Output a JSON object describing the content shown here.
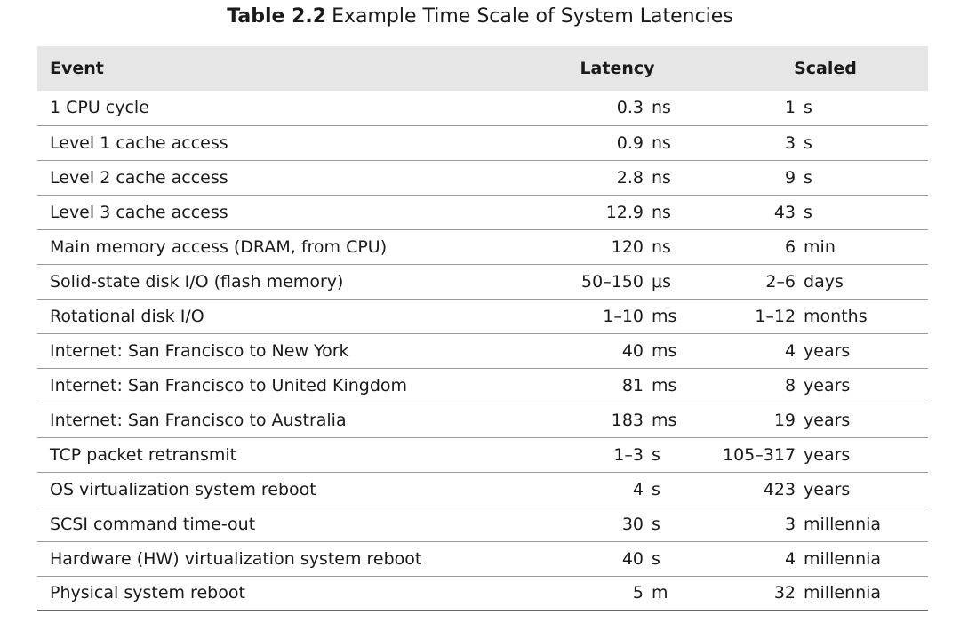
{
  "title": {
    "label": "Table 2.2",
    "text": "Example Time Scale of System Latencies"
  },
  "headers": {
    "event": "Event",
    "latency": "Latency",
    "scaled": "Scaled"
  },
  "rows": [
    {
      "event": "1 CPU cycle",
      "latency": "0.3",
      "latency_unit": "ns",
      "scaled": "1",
      "scaled_unit": "s"
    },
    {
      "event": "Level 1 cache access",
      "latency": "0.9",
      "latency_unit": "ns",
      "scaled": "3",
      "scaled_unit": "s"
    },
    {
      "event": "Level 2 cache access",
      "latency": "2.8",
      "latency_unit": "ns",
      "scaled": "9",
      "scaled_unit": "s"
    },
    {
      "event": "Level 3 cache access",
      "latency": "12.9",
      "latency_unit": "ns",
      "scaled": "43",
      "scaled_unit": "s"
    },
    {
      "event": "Main memory access (DRAM, from CPU)",
      "latency": "120",
      "latency_unit": "ns",
      "scaled": "6",
      "scaled_unit": "min"
    },
    {
      "event": "Solid-state disk I/O (flash memory)",
      "latency": "50–150",
      "latency_unit": "μs",
      "scaled": "2–6",
      "scaled_unit": "days"
    },
    {
      "event": "Rotational disk I/O",
      "latency": "1–10",
      "latency_unit": "ms",
      "scaled": "1–12",
      "scaled_unit": "months"
    },
    {
      "event": "Internet: San Francisco to New York",
      "latency": "40",
      "latency_unit": "ms",
      "scaled": "4",
      "scaled_unit": "years"
    },
    {
      "event": "Internet: San Francisco to United Kingdom",
      "latency": "81",
      "latency_unit": "ms",
      "scaled": "8",
      "scaled_unit": "years"
    },
    {
      "event": "Internet: San Francisco to Australia",
      "latency": "183",
      "latency_unit": "ms",
      "scaled": "19",
      "scaled_unit": "years"
    },
    {
      "event": "TCP packet retransmit",
      "latency": "1–3",
      "latency_unit": "s",
      "scaled": "105–317",
      "scaled_unit": "years"
    },
    {
      "event": "OS virtualization system reboot",
      "latency": "4",
      "latency_unit": "s",
      "scaled": "423",
      "scaled_unit": "years"
    },
    {
      "event": "SCSI command time-out",
      "latency": "30",
      "latency_unit": "s",
      "scaled": "3",
      "scaled_unit": "millennia"
    },
    {
      "event": "Hardware (HW) virtualization system reboot",
      "latency": "40",
      "latency_unit": "s",
      "scaled": "4",
      "scaled_unit": "millennia"
    },
    {
      "event": "Physical system reboot",
      "latency": "5",
      "latency_unit": "m",
      "scaled": "32",
      "scaled_unit": "millennia"
    }
  ]
}
